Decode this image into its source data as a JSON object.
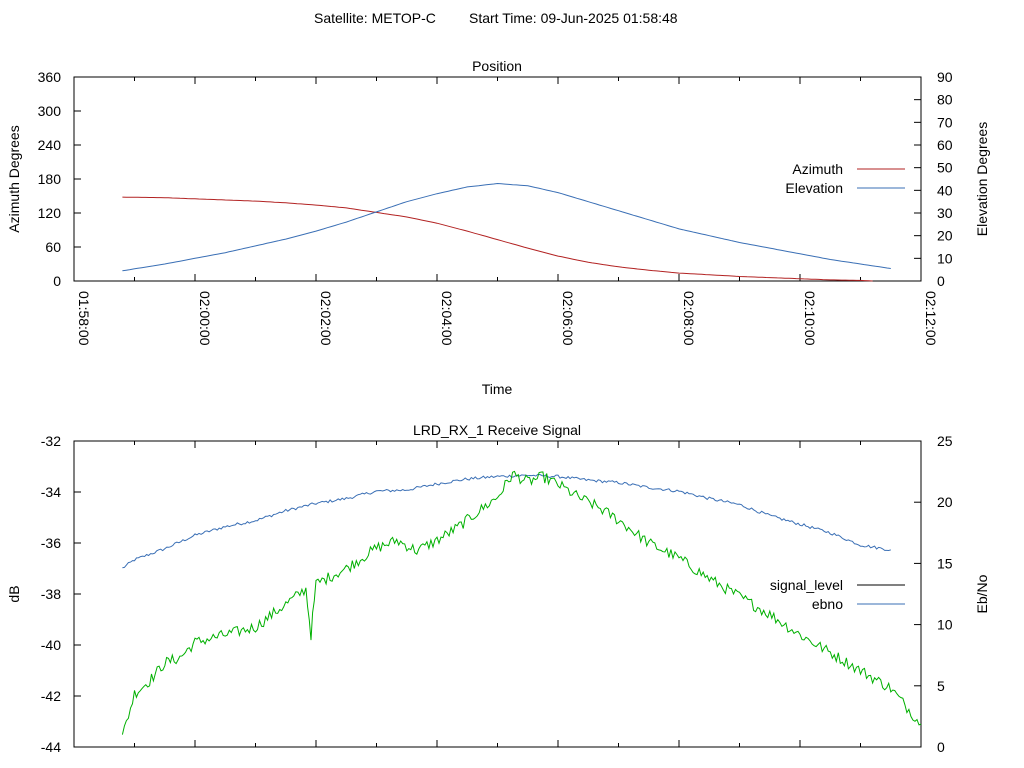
{
  "header": {
    "satellite": "Satellite: METOP-C",
    "start_time": "Start Time: 09-Jun-2025 01:58:48"
  },
  "colors": {
    "azimuth": "#b22222",
    "elevation": "#3a6fb5",
    "signal_level": "#00b000",
    "ebno": "#3a6fb5",
    "legend_signal_level": "#000000"
  },
  "chart_data": [
    {
      "type": "line",
      "title": "Position",
      "xlabel": "Time",
      "ylabel": "Azimuth Degrees",
      "y2label": "Elevation Degrees",
      "x_ticks": [
        "01:58:00",
        "02:00:00",
        "02:02:00",
        "02:04:00",
        "02:06:00",
        "02:08:00",
        "02:10:00",
        "02:12:00"
      ],
      "y_ticks": [
        "0",
        "60",
        "120",
        "180",
        "240",
        "300",
        "360"
      ],
      "y2_ticks": [
        "0",
        "10",
        "20",
        "30",
        "40",
        "50",
        "60",
        "70",
        "80",
        "90"
      ],
      "xlim": [
        "01:58:00",
        "02:12:00"
      ],
      "ylim": [
        0,
        360
      ],
      "y2lim": [
        0,
        90
      ],
      "legend_position": "right",
      "series": [
        {
          "name": "Azimuth",
          "axis": "y",
          "color": "#b22222",
          "points": [
            [
              "01:58:48",
              148
            ],
            [
              "01:59:30",
              147
            ],
            [
              "02:00:00",
              145
            ],
            [
              "02:00:30",
              143
            ],
            [
              "02:01:00",
              141
            ],
            [
              "02:01:30",
              138
            ],
            [
              "02:02:00",
              134
            ],
            [
              "02:02:30",
              129
            ],
            [
              "02:03:00",
              121
            ],
            [
              "02:03:30",
              113
            ],
            [
              "02:04:00",
              102
            ],
            [
              "02:04:30",
              88
            ],
            [
              "02:05:00",
              73
            ],
            [
              "02:05:30",
              58
            ],
            [
              "02:06:00",
              44
            ],
            [
              "02:06:30",
              33
            ],
            [
              "02:07:00",
              25
            ],
            [
              "02:07:30",
              19
            ],
            [
              "02:08:00",
              14
            ],
            [
              "02:08:30",
              11
            ],
            [
              "02:09:00",
              8
            ],
            [
              "02:09:30",
              6
            ],
            [
              "02:10:00",
              4
            ],
            [
              "02:10:30",
              2
            ],
            [
              "02:11:00",
              1
            ],
            [
              "02:11:12",
              0
            ]
          ]
        },
        {
          "name": "Elevation",
          "axis": "y2",
          "color": "#3a6fb5",
          "points": [
            [
              "01:58:48",
              4.5
            ],
            [
              "01:59:30",
              7.5
            ],
            [
              "02:00:00",
              10
            ],
            [
              "02:00:30",
              12.5
            ],
            [
              "02:01:00",
              15.5
            ],
            [
              "02:01:30",
              18.5
            ],
            [
              "02:02:00",
              22
            ],
            [
              "02:02:30",
              26
            ],
            [
              "02:03:00",
              30.5
            ],
            [
              "02:03:30",
              35
            ],
            [
              "02:04:00",
              38.5
            ],
            [
              "02:04:30",
              41.5
            ],
            [
              "02:05:00",
              43
            ],
            [
              "02:05:30",
              42
            ],
            [
              "02:06:00",
              39
            ],
            [
              "02:06:30",
              35
            ],
            [
              "02:07:00",
              31
            ],
            [
              "02:07:30",
              27
            ],
            [
              "02:08:00",
              23
            ],
            [
              "02:08:30",
              20
            ],
            [
              "02:09:00",
              17
            ],
            [
              "02:09:30",
              14.5
            ],
            [
              "02:10:00",
              12
            ],
            [
              "02:10:30",
              9.5
            ],
            [
              "02:11:00",
              7.5
            ],
            [
              "02:11:30",
              5.5
            ]
          ]
        }
      ]
    },
    {
      "type": "line",
      "title": "LRD_RX_1 Receive Signal",
      "xlabel": "",
      "ylabel": "dB",
      "y2label": "Eb/No",
      "y_ticks": [
        "-44",
        "-42",
        "-40",
        "-38",
        "-36",
        "-34",
        "-32"
      ],
      "y2_ticks": [
        "0",
        "5",
        "10",
        "15",
        "20",
        "25"
      ],
      "xlim": [
        "01:58:00",
        "02:12:00"
      ],
      "ylim": [
        -44,
        -32
      ],
      "y2lim": [
        0,
        25
      ],
      "legend_position": "right",
      "series": [
        {
          "name": "signal_level",
          "axis": "y",
          "color": "#00b000",
          "points": [
            [
              "01:58:48",
              -43.6
            ],
            [
              "01:59:00",
              -41.9
            ],
            [
              "01:59:15",
              -41.4
            ],
            [
              "01:59:30",
              -40.7
            ],
            [
              "01:59:45",
              -40.5
            ],
            [
              "02:00:00",
              -39.9
            ],
            [
              "02:00:30",
              -39.6
            ],
            [
              "02:01:00",
              -39.3
            ],
            [
              "02:01:30",
              -38.4
            ],
            [
              "02:01:50",
              -37.8
            ],
            [
              "02:01:55",
              -39.6
            ],
            [
              "02:02:00",
              -37.6
            ],
            [
              "02:02:30",
              -37.0
            ],
            [
              "02:03:00",
              -36.2
            ],
            [
              "02:03:20",
              -35.9
            ],
            [
              "02:03:40",
              -36.3
            ],
            [
              "02:04:00",
              -35.9
            ],
            [
              "02:04:20",
              -35.4
            ],
            [
              "02:04:40",
              -34.8
            ],
            [
              "02:05:00",
              -34.2
            ],
            [
              "02:05:15",
              -33.3
            ],
            [
              "02:05:30",
              -33.6
            ],
            [
              "02:05:45",
              -33.4
            ],
            [
              "02:06:00",
              -33.7
            ],
            [
              "02:06:20",
              -34.2
            ],
            [
              "02:06:40",
              -34.6
            ],
            [
              "02:07:00",
              -35.1
            ],
            [
              "02:07:30",
              -36.0
            ],
            [
              "02:08:00",
              -36.6
            ],
            [
              "02:08:30",
              -37.4
            ],
            [
              "02:09:00",
              -38.1
            ],
            [
              "02:09:30",
              -38.8
            ],
            [
              "02:10:00",
              -39.6
            ],
            [
              "02:10:30",
              -40.3
            ],
            [
              "02:11:00",
              -41.0
            ],
            [
              "02:11:30",
              -41.7
            ],
            [
              "02:12:00",
              -43.1
            ]
          ]
        },
        {
          "name": "ebno",
          "axis": "y2",
          "color": "#3a6fb5",
          "points": [
            [
              "01:58:48",
              14.6
            ],
            [
              "01:59:00",
              15.3
            ],
            [
              "01:59:30",
              16.2
            ],
            [
              "02:00:00",
              17.3
            ],
            [
              "02:00:30",
              18.0
            ],
            [
              "02:01:00",
              18.5
            ],
            [
              "02:01:30",
              19.3
            ],
            [
              "02:02:00",
              19.9
            ],
            [
              "02:02:30",
              20.3
            ],
            [
              "02:03:00",
              20.9
            ],
            [
              "02:03:30",
              21.0
            ],
            [
              "02:04:00",
              21.5
            ],
            [
              "02:04:30",
              21.9
            ],
            [
              "02:05:00",
              22.1
            ],
            [
              "02:05:30",
              22.2
            ],
            [
              "02:06:00",
              22.1
            ],
            [
              "02:06:30",
              21.8
            ],
            [
              "02:07:00",
              21.6
            ],
            [
              "02:07:30",
              21.2
            ],
            [
              "02:08:00",
              20.9
            ],
            [
              "02:08:30",
              20.3
            ],
            [
              "02:09:00",
              19.8
            ],
            [
              "02:09:30",
              18.9
            ],
            [
              "02:10:00",
              18.2
            ],
            [
              "02:10:30",
              17.5
            ],
            [
              "02:11:00",
              16.5
            ],
            [
              "02:11:30",
              16.1
            ]
          ]
        }
      ]
    }
  ]
}
